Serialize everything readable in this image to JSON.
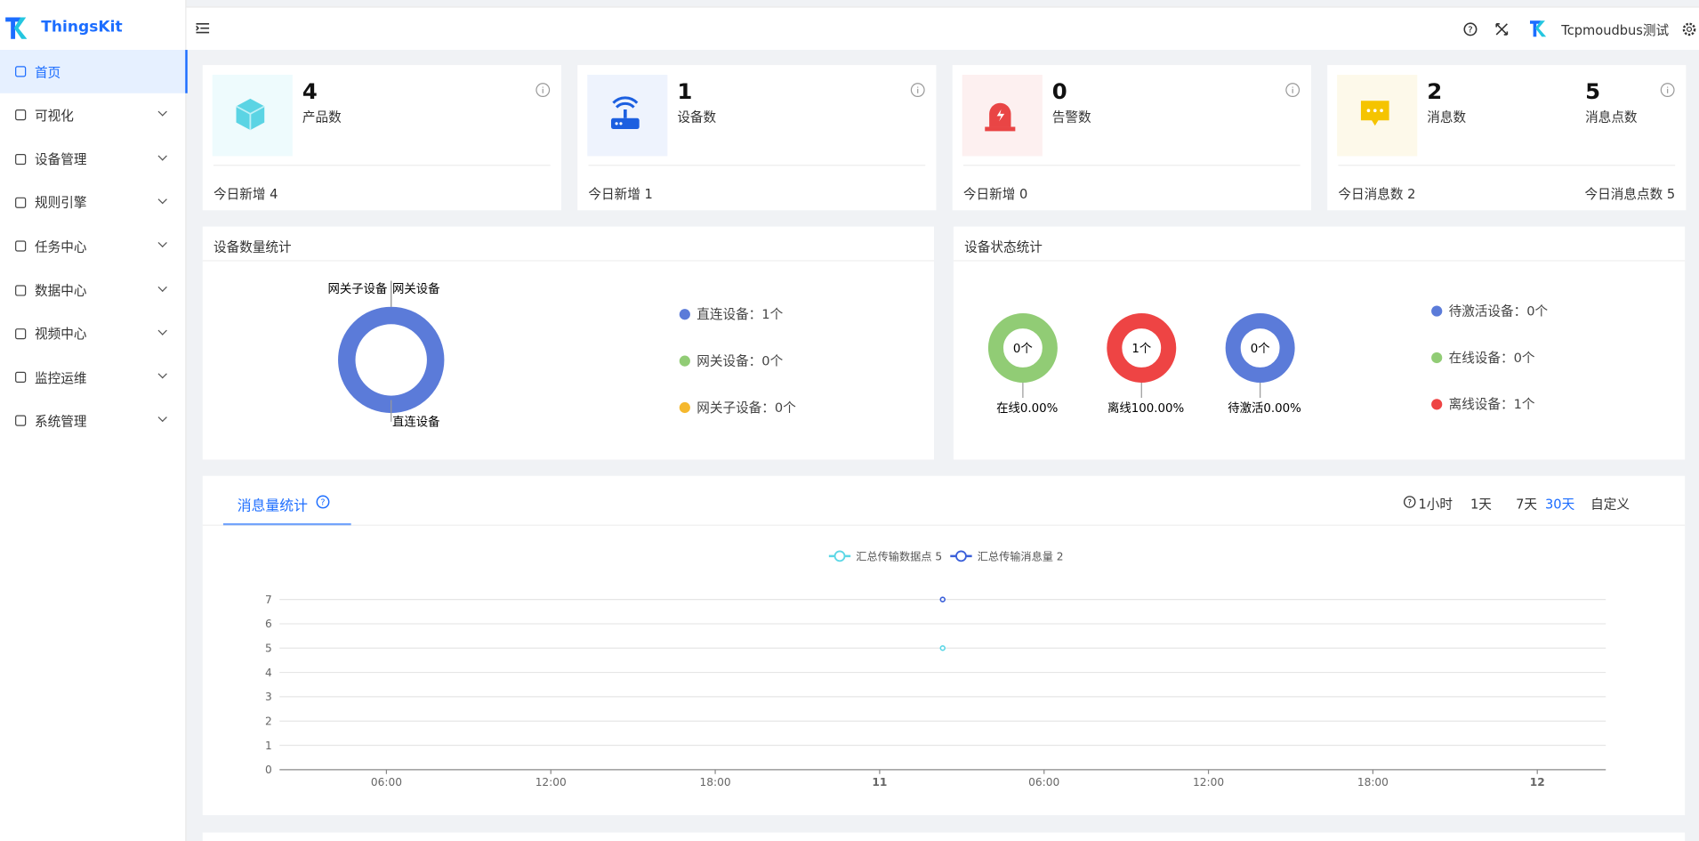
{
  "brand": "ThingsKit",
  "menu": [
    "首页",
    "可视化",
    "设备管理",
    "规则引擎",
    "任务中心",
    "数据中心",
    "视频中心",
    "监控运维",
    "系统管理"
  ],
  "header": {
    "user": "Tcpmoudbus测试"
  },
  "cards": [
    {
      "stats": [
        {
          "value": 4,
          "label": "产品数"
        }
      ],
      "footer": [
        "今日新增 4"
      ]
    },
    {
      "stats": [
        {
          "value": 1,
          "label": "设备数"
        }
      ],
      "footer": [
        "今日新增 1"
      ]
    },
    {
      "stats": [
        {
          "value": 0,
          "label": "告警数"
        }
      ],
      "footer": [
        "今日新增 0"
      ]
    },
    {
      "stats": [
        {
          "value": 2,
          "label": "消息数"
        },
        {
          "value": 5,
          "label": "消息点数"
        }
      ],
      "footer": [
        "今日消息数 2",
        "今日消息点数 5"
      ]
    }
  ],
  "device_count": {
    "title": "设备数量统计",
    "type": "pie",
    "slices": [
      {
        "name": "直连设备",
        "value": 1,
        "color": "#5b7bd9"
      },
      {
        "name": "网关设备",
        "value": 0,
        "color": "#91cc75"
      },
      {
        "name": "网关子设备",
        "value": 0,
        "color": "#f5b82e"
      }
    ],
    "legend": [
      "直连设备：1个",
      "网关设备：0个",
      "网关子设备：0个"
    ]
  },
  "device_status": {
    "title": "设备状态统计",
    "rings": [
      {
        "center": "0个",
        "label": "在线0.00%",
        "color": "#91cc75"
      },
      {
        "center": "1个",
        "label": "离线100.00%",
        "color": "#ee4444"
      },
      {
        "center": "0个",
        "label": "待激活0.00%",
        "color": "#5b7bd9"
      }
    ],
    "legend": [
      {
        "text": "待激活设备：0个",
        "color": "#5b7bd9"
      },
      {
        "text": "在线设备：0个",
        "color": "#91cc75"
      },
      {
        "text": "离线设备：1个",
        "color": "#ee4444"
      }
    ]
  },
  "message_stats": {
    "tab": "消息量统计",
    "ranges": [
      "1小时",
      "1天",
      "7天",
      "30天",
      "自定义"
    ],
    "active_range": 3
  },
  "chart_data": {
    "type": "line",
    "x": [
      26.3
    ],
    "series": [
      {
        "name": "汇总传输数据点 5",
        "color": "#5cd7e6",
        "values": [
          5
        ]
      },
      {
        "name": "汇总传输消息量 2",
        "color": "#3a5fd9",
        "values": [
          7
        ]
      }
    ],
    "xlim": [
      2.1,
      50.5
    ],
    "xticks": [
      {
        "value": 6,
        "label": "06:00"
      },
      {
        "value": 12,
        "label": "12:00"
      },
      {
        "value": 18,
        "label": "18:00"
      },
      {
        "value": 24,
        "label": "11"
      },
      {
        "value": 30,
        "label": "06:00"
      },
      {
        "value": 36,
        "label": "12:00"
      },
      {
        "value": 42,
        "label": "18:00"
      },
      {
        "value": 48,
        "label": "12"
      }
    ],
    "ylim": [
      0,
      7
    ],
    "yticks": [
      0,
      1,
      2,
      3,
      4,
      5,
      6,
      7
    ],
    "grid": true
  }
}
